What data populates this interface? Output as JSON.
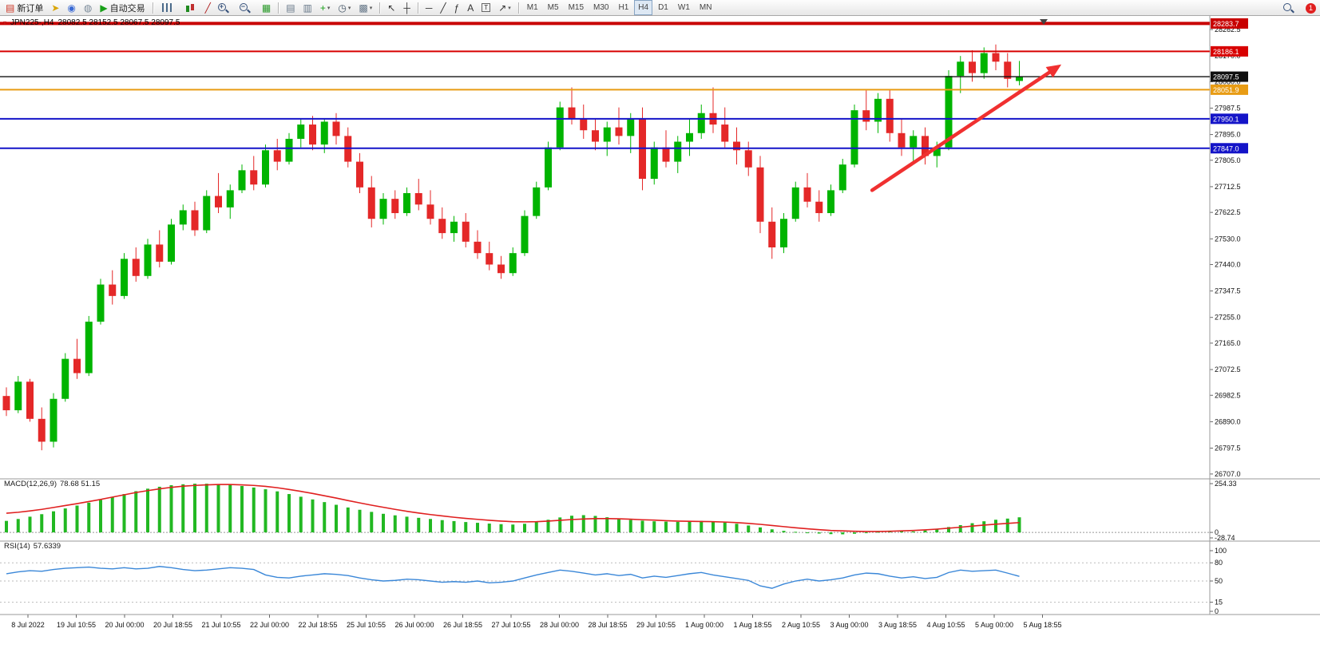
{
  "toolbar": {
    "groups": [
      {
        "name": "trade",
        "items": [
          {
            "name": "new-order-button",
            "glyph": "▤",
            "glyph_color": "#cc3322",
            "label": "新订单"
          },
          {
            "name": "pointer-hand-icon",
            "glyph": "➤",
            "glyph_color": "#d9a400"
          },
          {
            "name": "profile-icon",
            "glyph": "◉",
            "glyph_color": "#3a6ad4"
          },
          {
            "name": "community-icon",
            "glyph": "◍",
            "glyph_color": "#7a8a99"
          },
          {
            "name": "autotrading-button",
            "glyph": "▶",
            "glyph_color": "#18a018",
            "label": "自动交易"
          }
        ]
      },
      {
        "name": "chart-type",
        "items": [
          {
            "name": "bar-chart-type-icon",
            "cls": "ic-bars"
          },
          {
            "name": "candlestick-type-icon",
            "cls": "ic-candles"
          },
          {
            "name": "line-chart-type-icon",
            "glyph": "╱",
            "glyph_color": "#b02020"
          },
          {
            "name": "zoom-in-icon",
            "cls": "ic-mag",
            "glyph": "+"
          },
          {
            "name": "zoom-out-icon",
            "cls": "ic-mag",
            "glyph": "−"
          },
          {
            "name": "tile-windows-icon",
            "glyph": "▦",
            "glyph_color": "#2a9a2a"
          }
        ]
      },
      {
        "name": "chart-manage",
        "items": [
          {
            "name": "chart-window-icon",
            "glyph": "▤",
            "glyph_color": "#667788"
          },
          {
            "name": "chart-list-icon",
            "glyph": "▥",
            "glyph_color": "#667788"
          },
          {
            "name": "indicators-icon",
            "glyph": "+",
            "glyph_color": "#18a018",
            "dropdown": true
          },
          {
            "name": "periods-icon",
            "glyph": "◷",
            "glyph_color": "#445566",
            "dropdown": true
          },
          {
            "name": "templates-icon",
            "glyph": "▩",
            "glyph_color": "#667788",
            "dropdown": true
          }
        ]
      },
      {
        "name": "cursor-tools",
        "items": [
          {
            "name": "cursor-icon",
            "glyph": "↖",
            "glyph_color": "#333333"
          },
          {
            "name": "crosshair-icon",
            "glyph": "┼",
            "glyph_color": "#333333"
          }
        ]
      },
      {
        "name": "draw-tools",
        "items": [
          {
            "name": "horizontal-line-icon",
            "glyph": "─",
            "glyph_color": "#333333"
          },
          {
            "name": "trendline-icon",
            "glyph": "╱",
            "glyph_color": "#333333"
          },
          {
            "name": "fibonacci-icon",
            "glyph": "ƒ",
            "glyph_color": "#333333"
          },
          {
            "name": "text-tool-icon",
            "glyph": "A",
            "glyph_color": "#333333"
          },
          {
            "name": "label-tool-icon",
            "glyph": "T",
            "glyph_color": "#333333",
            "cls": "boxed"
          },
          {
            "name": "arrows-tool-icon",
            "glyph": "↗",
            "glyph_color": "#333333",
            "dropdown": true
          }
        ]
      },
      {
        "name": "timeframes",
        "items": [
          {
            "name": "tf-m1",
            "label": "M1",
            "cls": "tf"
          },
          {
            "name": "tf-m5",
            "label": "M5",
            "cls": "tf"
          },
          {
            "name": "tf-m15",
            "label": "M15",
            "cls": "tf"
          },
          {
            "name": "tf-m30",
            "label": "M30",
            "cls": "tf"
          },
          {
            "name": "tf-h1",
            "label": "H1",
            "cls": "tf"
          },
          {
            "name": "tf-h4",
            "label": "H4",
            "cls": "tf",
            "active": true
          },
          {
            "name": "tf-d1",
            "label": "D1",
            "cls": "tf"
          },
          {
            "name": "tf-w1",
            "label": "W1",
            "cls": "tf"
          },
          {
            "name": "tf-mn",
            "label": "MN",
            "cls": "tf"
          }
        ]
      }
    ],
    "right_items": [
      {
        "name": "search-icon",
        "cls": "ic-mag"
      },
      {
        "name": "notification-badge",
        "label": "1",
        "cls": "badge-red"
      }
    ]
  },
  "chart": {
    "symbol_period": "JPN225-,H4",
    "ohlc_text": "28082.5 28152.5 28067.5 28097.5"
  },
  "indicators": {
    "macd": {
      "label": "MACD(12,26,9)",
      "values": "78.68 51.15"
    },
    "rsi": {
      "label": "RSI(14)",
      "values": "57.6339"
    }
  },
  "chart_data": {
    "type": "candlestick",
    "symbol": "JPN225-",
    "timeframe": "H4",
    "y_range": [
      26690,
      28310
    ],
    "colors": {
      "up": "#00b400",
      "down": "#e42828"
    },
    "price_axis_labels": [
      "28262.5",
      "28170.0",
      "28080.0",
      "27987.5",
      "27895.0",
      "27805.0",
      "27712.5",
      "27622.5",
      "27530.0",
      "27440.0",
      "27347.5",
      "27255.0",
      "27165.0",
      "27072.5",
      "26982.5",
      "26890.0",
      "26797.5",
      "26707.0"
    ],
    "time_axis_labels": [
      "8 Jul 2022",
      "19 Jul 10:55",
      "20 Jul 00:00",
      "20 Jul 18:55",
      "21 Jul 10:55",
      "22 Jul 00:00",
      "22 Jul 18:55",
      "25 Jul 10:55",
      "26 Jul 00:00",
      "26 Jul 18:55",
      "27 Jul 10:55",
      "28 Jul 00:00",
      "28 Jul 18:55",
      "29 Jul 10:55",
      "1 Aug 00:00",
      "1 Aug 18:55",
      "2 Aug 10:55",
      "3 Aug 00:00",
      "3 Aug 18:55",
      "4 Aug 10:55",
      "5 Aug 00:00",
      "5 Aug 18:55"
    ],
    "candles": [
      [
        26980,
        27010,
        26910,
        26930
      ],
      [
        26930,
        27050,
        26920,
        27030
      ],
      [
        27030,
        27040,
        26890,
        26900
      ],
      [
        26900,
        26940,
        26790,
        26820
      ],
      [
        26820,
        26990,
        26800,
        26970
      ],
      [
        26970,
        27130,
        26960,
        27110
      ],
      [
        27110,
        27180,
        27040,
        27060
      ],
      [
        27060,
        27260,
        27050,
        27240
      ],
      [
        27240,
        27390,
        27230,
        27370
      ],
      [
        27370,
        27420,
        27300,
        27330
      ],
      [
        27330,
        27480,
        27320,
        27460
      ],
      [
        27460,
        27500,
        27380,
        27400
      ],
      [
        27400,
        27530,
        27390,
        27510
      ],
      [
        27510,
        27560,
        27430,
        27450
      ],
      [
        27450,
        27600,
        27440,
        27580
      ],
      [
        27580,
        27650,
        27560,
        27630
      ],
      [
        27630,
        27660,
        27540,
        27560
      ],
      [
        27560,
        27700,
        27550,
        27680
      ],
      [
        27680,
        27760,
        27620,
        27640
      ],
      [
        27640,
        27720,
        27600,
        27700
      ],
      [
        27700,
        27790,
        27690,
        27770
      ],
      [
        27770,
        27820,
        27700,
        27720
      ],
      [
        27720,
        27860,
        27710,
        27840
      ],
      [
        27840,
        27880,
        27770,
        27800
      ],
      [
        27800,
        27900,
        27790,
        27880
      ],
      [
        27880,
        27950,
        27850,
        27930
      ],
      [
        27930,
        27960,
        27840,
        27860
      ],
      [
        27860,
        27950,
        27830,
        27940
      ],
      [
        27940,
        27970,
        27860,
        27890
      ],
      [
        27890,
        27920,
        27780,
        27800
      ],
      [
        27800,
        27830,
        27690,
        27710
      ],
      [
        27710,
        27750,
        27570,
        27600
      ],
      [
        27600,
        27690,
        27580,
        27670
      ],
      [
        27670,
        27700,
        27600,
        27620
      ],
      [
        27620,
        27710,
        27610,
        27690
      ],
      [
        27690,
        27740,
        27630,
        27650
      ],
      [
        27650,
        27700,
        27580,
        27600
      ],
      [
        27600,
        27640,
        27530,
        27550
      ],
      [
        27550,
        27610,
        27520,
        27590
      ],
      [
        27590,
        27620,
        27500,
        27520
      ],
      [
        27520,
        27560,
        27460,
        27480
      ],
      [
        27480,
        27520,
        27420,
        27440
      ],
      [
        27440,
        27470,
        27390,
        27410
      ],
      [
        27410,
        27500,
        27400,
        27480
      ],
      [
        27480,
        27630,
        27470,
        27610
      ],
      [
        27610,
        27730,
        27600,
        27710
      ],
      [
        27710,
        27870,
        27700,
        27850
      ],
      [
        27850,
        28010,
        27840,
        27990
      ],
      [
        27990,
        28060,
        27930,
        27950
      ],
      [
        27950,
        28000,
        27880,
        27910
      ],
      [
        27910,
        27950,
        27840,
        27870
      ],
      [
        27870,
        27940,
        27820,
        27920
      ],
      [
        27920,
        27990,
        27860,
        27890
      ],
      [
        27890,
        27970,
        27830,
        27950
      ],
      [
        27950,
        27990,
        27700,
        27740
      ],
      [
        27740,
        27870,
        27720,
        27850
      ],
      [
        27850,
        27910,
        27780,
        27800
      ],
      [
        27800,
        27890,
        27760,
        27870
      ],
      [
        27870,
        27950,
        27820,
        27900
      ],
      [
        27900,
        28000,
        27880,
        27970
      ],
      [
        27970,
        28060,
        27900,
        27930
      ],
      [
        27930,
        27990,
        27850,
        27870
      ],
      [
        27870,
        27920,
        27790,
        27840
      ],
      [
        27840,
        27870,
        27750,
        27780
      ],
      [
        27780,
        27820,
        27550,
        27590
      ],
      [
        27590,
        27640,
        27460,
        27500
      ],
      [
        27500,
        27620,
        27480,
        27600
      ],
      [
        27600,
        27730,
        27590,
        27710
      ],
      [
        27710,
        27760,
        27640,
        27660
      ],
      [
        27660,
        27700,
        27590,
        27620
      ],
      [
        27620,
        27720,
        27610,
        27700
      ],
      [
        27700,
        27810,
        27690,
        27790
      ],
      [
        27790,
        28000,
        27780,
        27980
      ],
      [
        27980,
        28050,
        27910,
        27940
      ],
      [
        27940,
        28040,
        27900,
        28020
      ],
      [
        28020,
        28050,
        27870,
        27900
      ],
      [
        27900,
        27950,
        27820,
        27850
      ],
      [
        27850,
        27910,
        27800,
        27890
      ],
      [
        27890,
        27920,
        27790,
        27820
      ],
      [
        27820,
        27870,
        27780,
        27850
      ],
      [
        27850,
        28120,
        27840,
        28100
      ],
      [
        28100,
        28170,
        28040,
        28150
      ],
      [
        28150,
        28190,
        28080,
        28110
      ],
      [
        28110,
        28200,
        28090,
        28180
      ],
      [
        28180,
        28210,
        28120,
        28150
      ],
      [
        28150,
        28180,
        28060,
        28090
      ],
      [
        28082.5,
        28152.5,
        28067.5,
        28097.5
      ]
    ],
    "hlines": [
      {
        "price": 28283.7,
        "label": "28283.7",
        "color": "#c80000",
        "width": 4
      },
      {
        "price": 28186.1,
        "label": "28186.1",
        "color": "#d80000",
        "width": 2
      },
      {
        "price": 28097.5,
        "label": "28097.5",
        "color": "#101010",
        "width": 1.4
      },
      {
        "price": 28051.9,
        "label": "28051.9",
        "color": "#e89c14",
        "width": 2
      },
      {
        "price": 27950.1,
        "label": "27950.1",
        "color": "#1414c8",
        "width": 2
      },
      {
        "price": 27847.0,
        "label": "27847.0",
        "color": "#1414c8",
        "width": 2
      }
    ],
    "trend_arrow": {
      "from_bar": 73.5,
      "from_price": 27700,
      "to_bar": 89,
      "to_price": 28125,
      "color": "#f03030"
    },
    "macd": {
      "histogram_color": "#22b822",
      "signal_color": "#e02020",
      "range": [
        -28.74,
        254.33
      ],
      "axis_values": [
        254.33,
        0,
        -28.74
      ],
      "axis_labels": [
        "254.33",
        "0",
        "-28.74"
      ],
      "histogram": [
        60,
        70,
        82,
        95,
        110,
        125,
        140,
        155,
        170,
        185,
        200,
        215,
        228,
        238,
        246,
        251,
        254,
        254,
        252,
        248,
        242,
        234,
        225,
        214,
        200,
        186,
        172,
        158,
        144,
        130,
        118,
        107,
        97,
        89,
        82,
        76,
        70,
        64,
        59,
        54,
        50,
        46,
        43,
        41,
        45,
        54,
        66,
        78,
        87,
        90,
        86,
        79,
        71,
        65,
        61,
        58,
        56,
        55,
        57,
        60,
        58,
        52,
        45,
        36,
        26,
        16,
        8,
        3,
        -2,
        -6,
        -9,
        -10,
        -7,
        -3,
        3,
        9,
        8,
        5,
        10,
        18,
        28,
        38,
        48,
        58,
        66,
        72,
        78.68
      ],
      "signal": [
        100,
        105,
        112,
        120,
        130,
        140,
        150,
        161,
        172,
        184,
        196,
        208,
        218,
        227,
        235,
        241,
        245,
        248,
        250,
        250,
        248,
        245,
        240,
        233,
        224,
        214,
        203,
        191,
        179,
        166,
        154,
        142,
        131,
        120,
        110,
        101,
        93,
        86,
        79,
        73,
        68,
        63,
        59,
        56,
        55,
        56,
        59,
        63,
        67,
        70,
        72,
        72,
        71,
        69,
        66,
        64,
        61,
        59,
        58,
        57,
        56,
        54,
        51,
        47,
        42,
        36,
        30,
        24,
        19,
        14,
        10,
        8,
        6,
        5,
        5,
        6,
        8,
        10,
        13,
        17,
        22,
        27,
        33,
        38,
        43,
        47,
        51.15
      ]
    },
    "rsi": {
      "line_color": "#3a87d8",
      "range": [
        0,
        100
      ],
      "levels": [
        80,
        50,
        15
      ],
      "axis_values": [
        100,
        80,
        50,
        15,
        0
      ],
      "axis_labels": [
        "100",
        "80",
        "50",
        "15",
        "0"
      ],
      "line": [
        62,
        65,
        67,
        66,
        69,
        71,
        72,
        73,
        71,
        70,
        72,
        70,
        71,
        74,
        72,
        69,
        67,
        68,
        70,
        72,
        71,
        69,
        60,
        56,
        55,
        58,
        60,
        62,
        61,
        59,
        55,
        52,
        50,
        51,
        53,
        52,
        50,
        48,
        49,
        48,
        50,
        47,
        48,
        50,
        55,
        60,
        64,
        68,
        66,
        63,
        60,
        62,
        59,
        61,
        55,
        58,
        56,
        59,
        62,
        64,
        60,
        57,
        54,
        51,
        42,
        38,
        45,
        50,
        53,
        50,
        52,
        55,
        60,
        63,
        62,
        58,
        55,
        57,
        54,
        56,
        64,
        68,
        66,
        67,
        68,
        63,
        57.63
      ]
    }
  }
}
